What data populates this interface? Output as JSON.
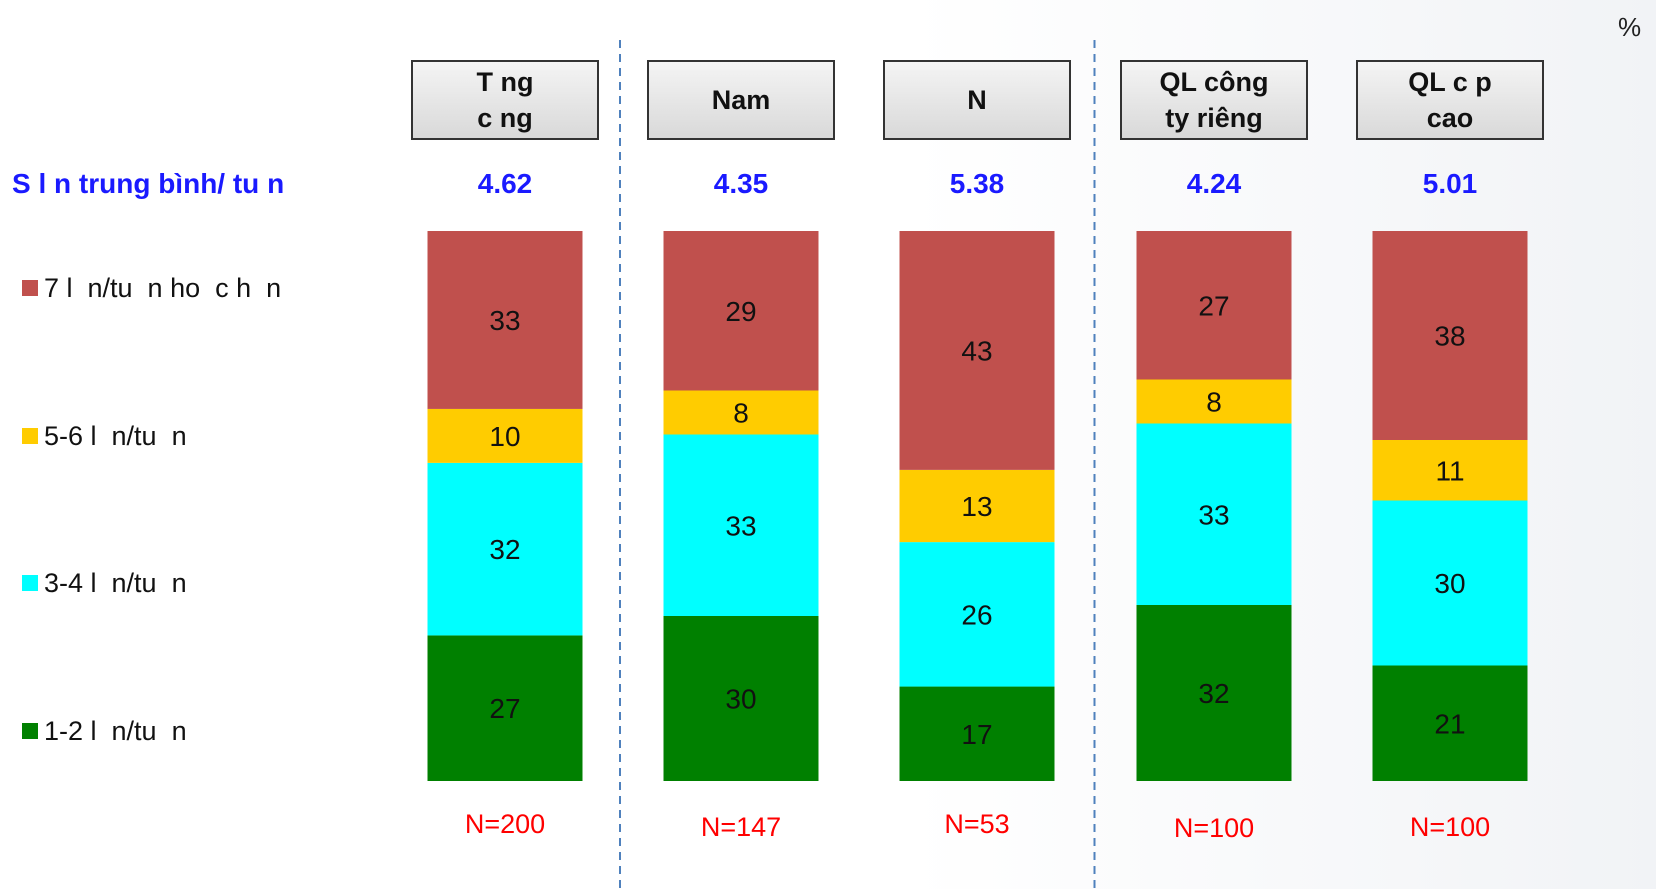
{
  "unit_label": "%",
  "average_label": "S   l  n trung bình/ tu  n",
  "colors": {
    "seg_7plus": "#c0504d",
    "seg_5_6": "#ffcc00",
    "seg_3_4": "#00ffff",
    "seg_1_2": "#008000",
    "average_text": "#1a1aff",
    "n_text": "#ff0000",
    "divider": "#4f81bd"
  },
  "chart_data": {
    "type": "bar",
    "stacked": true,
    "orientation": "vertical",
    "unit": "%",
    "categories": [
      "T   ng\nc   ng",
      "Nam",
      "N",
      "QL công\nty riêng",
      "QL c  p\ncao"
    ],
    "series": [
      {
        "name": "1-2 l  n/tu  n",
        "color": "#008000",
        "values": [
          27,
          30,
          17,
          32,
          21
        ]
      },
      {
        "name": "3-4 l  n/tu  n",
        "color": "#00ffff",
        "values": [
          32,
          33,
          26,
          33,
          30
        ]
      },
      {
        "name": "5-6 l  n/tu  n",
        "color": "#ffcc00",
        "values": [
          10,
          8,
          13,
          8,
          11
        ]
      },
      {
        "name": "7 l  n/tu  n ho  c h  n",
        "color": "#c0504d",
        "values": [
          33,
          29,
          43,
          27,
          38
        ]
      }
    ],
    "averages": [
      "4.62",
      "4.35",
      "5.38",
      "4.24",
      "5.01"
    ],
    "sample_sizes": [
      "N=200",
      "N=147",
      "N=53",
      "N=100",
      "N=100"
    ],
    "legend_position": "left",
    "grid": false,
    "group_dividers_after": [
      0,
      2
    ]
  }
}
